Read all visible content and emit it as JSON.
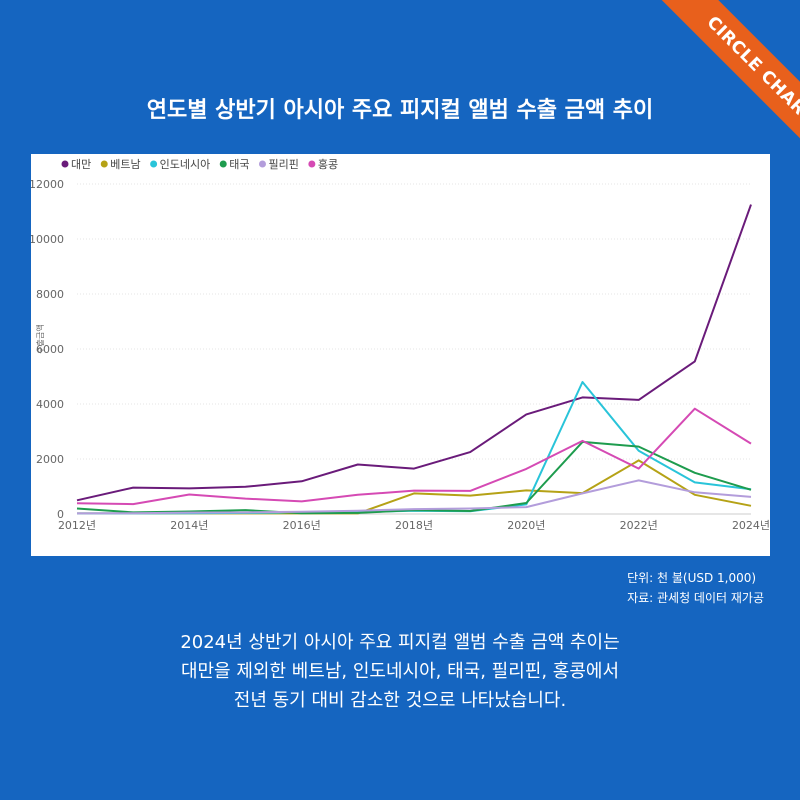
{
  "banner": {
    "text": "CIRCLE CHART"
  },
  "colors": {
    "background": "#1565c0",
    "banner": "#e8601c"
  },
  "chart_data": {
    "type": "line",
    "title": "연도별 상반기 아시아 주요 피지컬 앨범 수출 금액 추이",
    "ylabel": "수출금액",
    "xlabel": "",
    "x": [
      2012,
      2013,
      2014,
      2015,
      2016,
      2017,
      2018,
      2019,
      2020,
      2021,
      2022,
      2023,
      2024
    ],
    "x_tick_labels": [
      "2012년",
      "2014년",
      "2016년",
      "2018년",
      "2020년",
      "2022년",
      "2024년"
    ],
    "x_tick_values": [
      2012,
      2014,
      2016,
      2018,
      2020,
      2022,
      2024
    ],
    "y_ticks": [
      0,
      2000,
      4000,
      6000,
      8000,
      10000,
      12000
    ],
    "ylim": [
      0,
      12000
    ],
    "grid": true,
    "legend": "top-left",
    "series": [
      {
        "name": "대만",
        "color": "#6a1b7a",
        "values": [
          500,
          960,
          930,
          990,
          1190,
          1800,
          1650,
          2250,
          3620,
          4240,
          4150,
          5550,
          11250
        ]
      },
      {
        "name": "베트남",
        "color": "#b5a216",
        "values": [
          20,
          20,
          20,
          20,
          20,
          20,
          750,
          670,
          860,
          760,
          1950,
          700,
          300
        ]
      },
      {
        "name": "인도네시아",
        "color": "#29c4d9",
        "values": [
          20,
          20,
          30,
          40,
          60,
          70,
          120,
          100,
          350,
          4800,
          2300,
          1150,
          900
        ]
      },
      {
        "name": "태국",
        "color": "#1e9c4e",
        "values": [
          200,
          60,
          90,
          140,
          30,
          40,
          140,
          110,
          400,
          2620,
          2450,
          1500,
          880
        ]
      },
      {
        "name": "필리핀",
        "color": "#b39ddb",
        "values": [
          20,
          30,
          50,
          60,
          80,
          120,
          180,
          200,
          250,
          750,
          1220,
          790,
          620
        ]
      },
      {
        "name": "홍콩",
        "color": "#d54ab4",
        "values": [
          390,
          360,
          710,
          560,
          460,
          700,
          850,
          840,
          1640,
          2660,
          1650,
          3830,
          2560
        ]
      }
    ]
  },
  "notes": {
    "unit": "단위: 천 불(USD 1,000)",
    "source": "자료: 관세청 데이터 재가공"
  },
  "caption": {
    "line1": "2024년 상반기 아시아 주요 피지컬 앨범 수출 금액 추이는",
    "line2": "대만을 제외한 베트남, 인도네시아, 태국, 필리핀, 홍콩에서",
    "line3": "전년 동기 대비 감소한 것으로 나타났습니다."
  }
}
